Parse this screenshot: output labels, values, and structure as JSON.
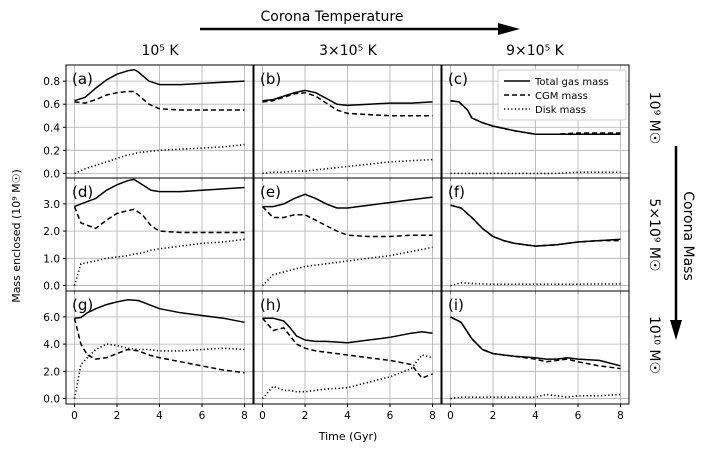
{
  "figure": {
    "top_label": "Corona Temperature",
    "right_label": "Corona Mass",
    "ylabel": "Mass enclosed (10⁹ M☉)",
    "xlabel": "Time (Gyr)",
    "col_labels": [
      "10⁵ K",
      "3×10⁵ K",
      "9×10⁵ K"
    ],
    "row_labels": [
      "10⁹ M☉",
      "5×10⁹ M☉",
      "10¹⁰ M☉"
    ],
    "x_ticks": [
      "0",
      "2",
      "4",
      "6",
      "8"
    ],
    "legend": [
      "Total gas mass",
      "CGM mass",
      "Disk mass"
    ],
    "colors": {
      "lines": "#000000",
      "grid": "#b0b0b0",
      "frame": "#000000"
    }
  },
  "chart_data": [
    {
      "type": "line",
      "panel": "(a)",
      "xlim": [
        -0.4,
        8.4
      ],
      "ylim": [
        -0.04,
        0.94
      ],
      "y_ticks": [
        "0.0",
        "0.2",
        "0.4",
        "0.6",
        "0.8"
      ],
      "x": [
        0,
        0.5,
        1,
        1.5,
        2,
        2.5,
        2.8,
        3,
        3.5,
        4,
        5,
        6,
        7,
        8
      ],
      "series": [
        {
          "name": "Total gas mass",
          "style": "solid",
          "values": [
            0.63,
            0.66,
            0.74,
            0.81,
            0.86,
            0.89,
            0.9,
            0.88,
            0.8,
            0.77,
            0.77,
            0.78,
            0.79,
            0.8
          ]
        },
        {
          "name": "CGM mass",
          "style": "dashed",
          "values": [
            0.62,
            0.61,
            0.64,
            0.68,
            0.7,
            0.71,
            0.71,
            0.68,
            0.6,
            0.56,
            0.55,
            0.55,
            0.55,
            0.55
          ]
        },
        {
          "name": "Disk mass",
          "style": "dotted",
          "values": [
            0.0,
            0.04,
            0.07,
            0.1,
            0.13,
            0.16,
            0.17,
            0.18,
            0.19,
            0.2,
            0.21,
            0.22,
            0.23,
            0.25
          ]
        }
      ]
    },
    {
      "type": "line",
      "panel": "(b)",
      "xlim": [
        -0.4,
        8.4
      ],
      "ylim": [
        -0.04,
        0.94
      ],
      "y_ticks": [],
      "x": [
        0,
        0.5,
        1,
        1.5,
        2,
        2.5,
        3,
        3.5,
        4,
        5,
        6,
        7,
        8
      ],
      "series": [
        {
          "name": "Total gas mass",
          "style": "solid",
          "values": [
            0.63,
            0.64,
            0.67,
            0.7,
            0.72,
            0.7,
            0.65,
            0.6,
            0.59,
            0.6,
            0.61,
            0.61,
            0.62
          ]
        },
        {
          "name": "CGM mass",
          "style": "dashed",
          "values": [
            0.62,
            0.63,
            0.66,
            0.69,
            0.7,
            0.67,
            0.61,
            0.55,
            0.52,
            0.51,
            0.5,
            0.5,
            0.5
          ]
        },
        {
          "name": "Disk mass",
          "style": "dotted",
          "values": [
            0.0,
            0.01,
            0.01,
            0.02,
            0.02,
            0.03,
            0.04,
            0.05,
            0.06,
            0.08,
            0.1,
            0.11,
            0.12
          ]
        }
      ]
    },
    {
      "type": "line",
      "panel": "(c)",
      "xlim": [
        -0.4,
        8.4
      ],
      "ylim": [
        -0.04,
        0.94
      ],
      "y_ticks": [],
      "x": [
        0,
        0.4,
        0.8,
        1,
        1.5,
        2,
        3,
        4,
        5,
        6,
        7,
        8
      ],
      "series": [
        {
          "name": "Total gas mass",
          "style": "solid",
          "values": [
            0.63,
            0.62,
            0.55,
            0.48,
            0.44,
            0.41,
            0.37,
            0.34,
            0.34,
            0.34,
            0.34,
            0.34
          ]
        },
        {
          "name": "CGM mass",
          "style": "dashed",
          "values": [
            0.63,
            0.62,
            0.55,
            0.48,
            0.44,
            0.41,
            0.37,
            0.34,
            0.34,
            0.35,
            0.35,
            0.35
          ]
        },
        {
          "name": "Disk mass",
          "style": "dotted",
          "values": [
            0.0,
            0.0,
            0.0,
            0.0,
            0.0,
            0.0,
            0.0,
            0.0,
            0.0,
            0.01,
            0.01,
            0.01
          ]
        }
      ]
    },
    {
      "type": "line",
      "panel": "(d)",
      "xlim": [
        -0.4,
        8.4
      ],
      "ylim": [
        -0.2,
        3.95
      ],
      "y_ticks": [
        "0.0",
        "1.0",
        "2.0",
        "3.0"
      ],
      "x": [
        0,
        0.3,
        1,
        1.5,
        2,
        2.5,
        2.8,
        3.2,
        3.6,
        4,
        5,
        6,
        7,
        8
      ],
      "series": [
        {
          "name": "Total gas mass",
          "style": "solid",
          "values": [
            2.9,
            3.0,
            3.2,
            3.5,
            3.7,
            3.85,
            3.9,
            3.7,
            3.5,
            3.45,
            3.45,
            3.5,
            3.55,
            3.6
          ]
        },
        {
          "name": "CGM mass",
          "style": "dashed",
          "values": [
            2.9,
            2.3,
            2.1,
            2.4,
            2.65,
            2.75,
            2.8,
            2.6,
            2.2,
            2.0,
            1.95,
            1.95,
            1.95,
            1.95
          ]
        },
        {
          "name": "Disk mass",
          "style": "dotted",
          "values": [
            0.0,
            0.8,
            0.9,
            1.0,
            1.05,
            1.1,
            1.15,
            1.2,
            1.3,
            1.35,
            1.45,
            1.55,
            1.6,
            1.7
          ]
        }
      ]
    },
    {
      "type": "line",
      "panel": "(e)",
      "xlim": [
        -0.4,
        8.4
      ],
      "ylim": [
        -0.2,
        3.95
      ],
      "y_ticks": [],
      "x": [
        0,
        0.5,
        1,
        1.5,
        2,
        2.5,
        3,
        3.5,
        4,
        5,
        6,
        7,
        8
      ],
      "series": [
        {
          "name": "Total gas mass",
          "style": "solid",
          "values": [
            2.9,
            2.9,
            3.0,
            3.2,
            3.35,
            3.2,
            3.0,
            2.85,
            2.85,
            2.95,
            3.05,
            3.15,
            3.25
          ]
        },
        {
          "name": "CGM mass",
          "style": "dashed",
          "values": [
            2.9,
            2.5,
            2.5,
            2.6,
            2.6,
            2.4,
            2.2,
            2.0,
            1.85,
            1.8,
            1.8,
            1.85,
            1.85
          ]
        },
        {
          "name": "Disk mass",
          "style": "dotted",
          "values": [
            0.0,
            0.4,
            0.5,
            0.6,
            0.7,
            0.75,
            0.8,
            0.85,
            0.9,
            1.0,
            1.1,
            1.25,
            1.4
          ]
        }
      ]
    },
    {
      "type": "line",
      "panel": "(f)",
      "xlim": [
        -0.4,
        8.4
      ],
      "ylim": [
        -0.2,
        3.95
      ],
      "y_ticks": [],
      "x": [
        0,
        0.5,
        1,
        1.5,
        2,
        2.5,
        3,
        3.5,
        4,
        5,
        6,
        7,
        8
      ],
      "series": [
        {
          "name": "Total gas mass",
          "style": "solid",
          "values": [
            2.95,
            2.85,
            2.5,
            2.1,
            1.8,
            1.65,
            1.55,
            1.5,
            1.45,
            1.5,
            1.6,
            1.65,
            1.7
          ]
        },
        {
          "name": "CGM mass",
          "style": "dashed",
          "values": [
            2.95,
            2.85,
            2.5,
            2.1,
            1.8,
            1.65,
            1.55,
            1.5,
            1.45,
            1.5,
            1.6,
            1.65,
            1.65
          ]
        },
        {
          "name": "Disk mass",
          "style": "dotted",
          "values": [
            0.0,
            0.1,
            0.08,
            0.06,
            0.05,
            0.05,
            0.05,
            0.05,
            0.05,
            0.05,
            0.05,
            0.06,
            0.06
          ]
        }
      ]
    },
    {
      "type": "line",
      "panel": "(g)",
      "xlim": [
        -0.4,
        8.4
      ],
      "ylim": [
        -0.4,
        7.9
      ],
      "y_ticks": [
        "0.0",
        "2.0",
        "4.0",
        "6.0"
      ],
      "x": [
        0,
        0.3,
        0.6,
        1,
        1.5,
        2,
        2.5,
        3,
        3.5,
        4,
        5,
        6,
        7,
        8
      ],
      "series": [
        {
          "name": "Total gas mass",
          "style": "solid",
          "values": [
            5.9,
            5.95,
            6.3,
            6.6,
            6.9,
            7.1,
            7.25,
            7.2,
            6.9,
            6.6,
            6.3,
            6.1,
            5.9,
            5.6
          ]
        },
        {
          "name": "CGM mass",
          "style": "dashed",
          "values": [
            5.9,
            4.0,
            3.2,
            2.9,
            3.0,
            3.3,
            3.6,
            3.5,
            3.2,
            3.0,
            2.7,
            2.4,
            2.1,
            1.9
          ]
        },
        {
          "name": "Disk mass",
          "style": "dotted",
          "values": [
            0.0,
            2.5,
            3.0,
            3.6,
            4.0,
            3.9,
            3.7,
            3.6,
            3.6,
            3.5,
            3.5,
            3.6,
            3.7,
            3.6
          ]
        }
      ]
    },
    {
      "type": "line",
      "panel": "(h)",
      "xlim": [
        -0.4,
        8.4
      ],
      "ylim": [
        -0.4,
        7.9
      ],
      "y_ticks": [],
      "x": [
        0,
        0.5,
        1,
        1.3,
        1.6,
        2,
        2.5,
        3,
        4,
        5,
        6,
        7,
        7.5,
        8
      ],
      "series": [
        {
          "name": "Total gas mass",
          "style": "solid",
          "values": [
            5.9,
            5.9,
            5.7,
            5.2,
            4.6,
            4.3,
            4.2,
            4.2,
            4.1,
            4.3,
            4.5,
            4.8,
            4.9,
            4.8
          ]
        },
        {
          "name": "CGM mass",
          "style": "dashed",
          "values": [
            5.9,
            5.0,
            5.2,
            4.6,
            4.0,
            3.7,
            3.5,
            3.4,
            3.2,
            3.0,
            2.8,
            2.5,
            1.5,
            1.8
          ]
        },
        {
          "name": "Disk mass",
          "style": "dotted",
          "values": [
            0.0,
            0.9,
            0.6,
            0.6,
            0.5,
            0.5,
            0.6,
            0.7,
            0.8,
            1.2,
            1.6,
            2.2,
            3.2,
            3.0
          ]
        }
      ]
    },
    {
      "type": "line",
      "panel": "(i)",
      "xlim": [
        -0.4,
        8.4
      ],
      "ylim": [
        -0.4,
        7.9
      ],
      "y_ticks": [],
      "x": [
        0,
        0.5,
        1,
        1.5,
        2,
        3,
        4,
        4.5,
        5,
        5.5,
        6,
        7,
        8
      ],
      "series": [
        {
          "name": "Total gas mass",
          "style": "solid",
          "values": [
            6.0,
            5.6,
            4.4,
            3.6,
            3.3,
            3.1,
            3.0,
            2.9,
            2.9,
            3.0,
            2.9,
            2.8,
            2.4
          ]
        },
        {
          "name": "CGM mass",
          "style": "dashed",
          "values": [
            6.0,
            5.6,
            4.4,
            3.6,
            3.3,
            3.1,
            2.9,
            2.7,
            2.8,
            2.9,
            2.7,
            2.4,
            2.2
          ]
        },
        {
          "name": "Disk mass",
          "style": "dotted",
          "values": [
            0.0,
            0.1,
            0.1,
            0.1,
            0.1,
            0.1,
            0.1,
            0.3,
            0.2,
            0.1,
            0.2,
            0.2,
            0.3
          ]
        }
      ]
    }
  ]
}
